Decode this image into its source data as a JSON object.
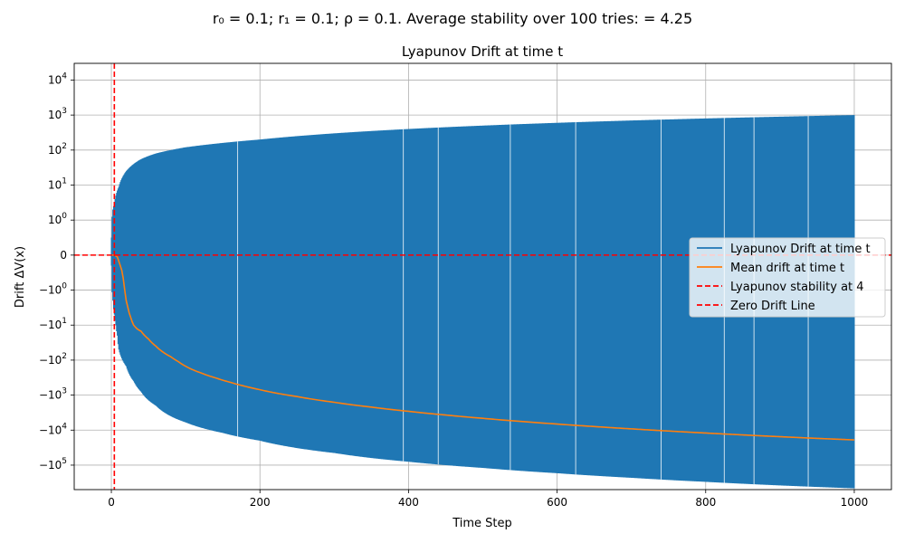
{
  "chart_data": {
    "type": "line",
    "suptitle": "r₀ = 0.1; r₁ = 0.1; ρ = 0.1. Average stability over 100 tries: = 4.25",
    "title": "Lyapunov Drift at time t",
    "xlabel": "Time Step",
    "ylabel": "Drift ΔV(x)",
    "xlim": [
      -50,
      1050
    ],
    "yscale": "symlog",
    "ylim": [
      -500000,
      30000
    ],
    "grid": true,
    "x_ticks": [
      0,
      200,
      400,
      600,
      800,
      1000
    ],
    "y_ticks": [
      {
        "value": 10000,
        "base": "10",
        "exp": "4",
        "neg": false
      },
      {
        "value": 1000,
        "base": "10",
        "exp": "3",
        "neg": false
      },
      {
        "value": 100,
        "base": "10",
        "exp": "2",
        "neg": false
      },
      {
        "value": 10,
        "base": "10",
        "exp": "1",
        "neg": false
      },
      {
        "value": 1,
        "base": "10",
        "exp": "0",
        "neg": false
      },
      {
        "value": 0,
        "base": "0",
        "exp": "",
        "neg": false
      },
      {
        "value": -1,
        "base": "10",
        "exp": "0",
        "neg": true
      },
      {
        "value": -10,
        "base": "10",
        "exp": "1",
        "neg": true
      },
      {
        "value": -100,
        "base": "10",
        "exp": "2",
        "neg": true
      },
      {
        "value": -1000,
        "base": "10",
        "exp": "3",
        "neg": true
      },
      {
        "value": -10000,
        "base": "10",
        "exp": "4",
        "neg": true
      },
      {
        "value": -100000,
        "base": "10",
        "exp": "5",
        "neg": true
      }
    ],
    "series": [
      {
        "name": "Lyapunov Drift at time t",
        "style": "band",
        "color": "#1f77b4",
        "x": [
          0,
          2,
          4,
          6,
          8,
          10,
          20,
          30,
          40,
          60,
          80,
          100,
          150,
          200,
          300,
          400,
          500,
          600,
          700,
          800,
          900,
          1000
        ],
        "upper": [
          0.5,
          2,
          3,
          5,
          7,
          9,
          25,
          40,
          55,
          80,
          100,
          120,
          160,
          200,
          300,
          400,
          500,
          600,
          700,
          800,
          900,
          1000
        ],
        "lower": [
          -0.3,
          -2,
          -5,
          -10,
          -20,
          -50,
          -150,
          -400,
          -800,
          -2000,
          -4000,
          -6000,
          -12000,
          -20000,
          -45000,
          -80000,
          -120000,
          -170000,
          -230000,
          -300000,
          -380000,
          -460000
        ],
        "gaps": [
          170,
          393,
          440,
          537,
          625,
          740,
          825,
          865,
          938
        ]
      },
      {
        "name": "Mean drift at time t",
        "style": "line",
        "color": "#ff7f0e",
        "x": [
          0,
          4,
          8,
          12,
          15,
          18,
          22,
          26,
          30,
          35,
          40,
          50,
          60,
          70,
          80,
          90,
          100,
          120,
          140,
          160,
          180,
          200,
          250,
          300,
          350,
          400,
          450,
          500,
          550,
          600,
          650,
          700,
          750,
          800,
          850,
          900,
          950,
          1000
        ],
        "y": [
          0,
          0,
          -0.05,
          -0.3,
          -0.5,
          -1,
          -3,
          -6,
          -10,
          -13,
          -15,
          -25,
          -40,
          -60,
          -80,
          -110,
          -150,
          -230,
          -320,
          -430,
          -560,
          -700,
          -1100,
          -1600,
          -2200,
          -2900,
          -3700,
          -4600,
          -5600,
          -6700,
          -7900,
          -9200,
          -10600,
          -12100,
          -13700,
          -15400,
          -17200,
          -19000
        ]
      }
    ],
    "vline": {
      "name": "Lyapunov stability at 4",
      "x": 4,
      "color": "#ff0000"
    },
    "hline": {
      "name": "Zero Drift Line",
      "y": 0,
      "color": "#ff0000"
    },
    "legend": "center-right"
  }
}
